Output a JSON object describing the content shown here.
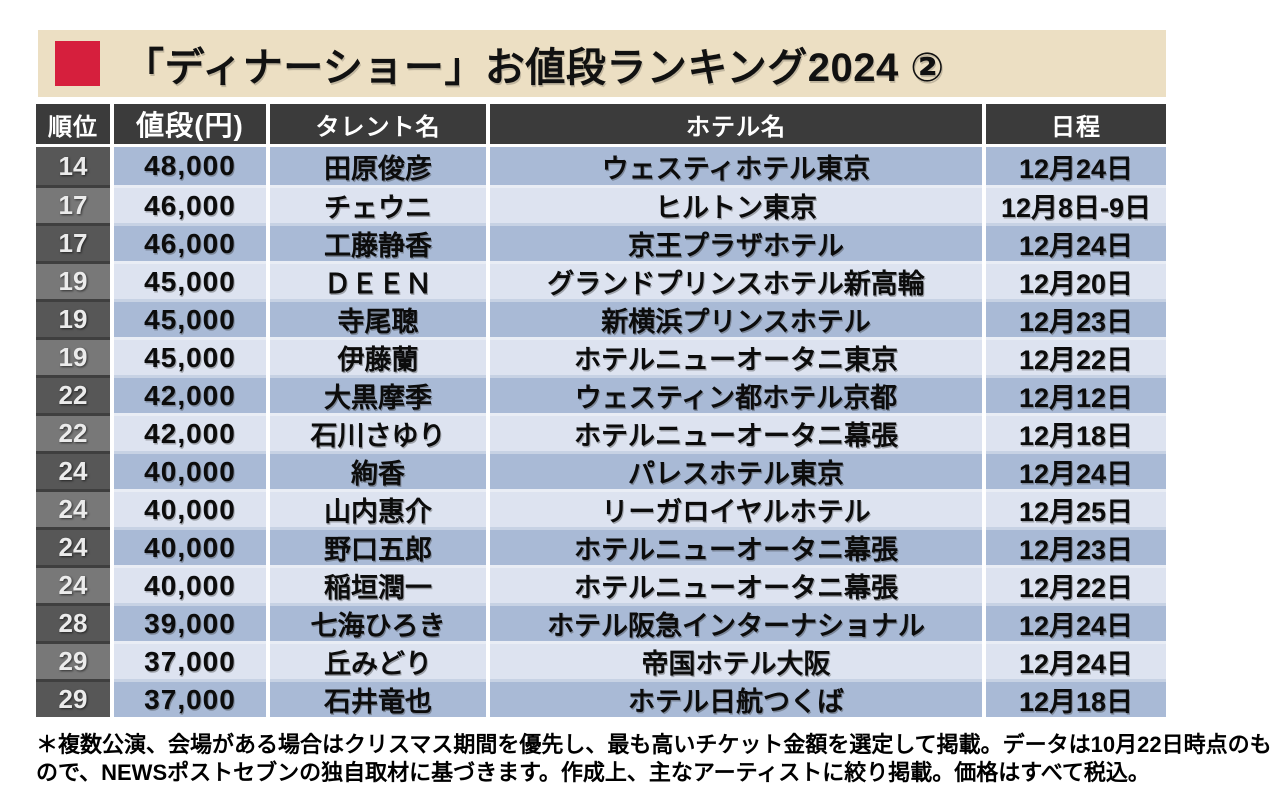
{
  "title": {
    "text": "「ディナーショー」お値段ランキング2024 ②"
  },
  "chart_data": {
    "type": "table",
    "title": "「ディナーショー」お値段ランキング2024 ②",
    "columns": [
      "順位",
      "値段(円)",
      "タレント名",
      "ホテル名",
      "日程"
    ],
    "rows": [
      [
        "14",
        "48,000",
        "田原俊彦",
        "ウェスティホテル東京",
        "12月24日"
      ],
      [
        "17",
        "46,000",
        "チェウニ",
        "ヒルトン東京",
        "12月8日-9日"
      ],
      [
        "17",
        "46,000",
        "工藤静香",
        "京王プラザホテル",
        "12月24日"
      ],
      [
        "19",
        "45,000",
        "ＤＥＥＮ",
        "グランドプリンスホテル新高輪",
        "12月20日"
      ],
      [
        "19",
        "45,000",
        "寺尾聰",
        "新横浜プリンスホテル",
        "12月23日"
      ],
      [
        "19",
        "45,000",
        "伊藤蘭",
        "ホテルニューオータニ東京",
        "12月22日"
      ],
      [
        "22",
        "42,000",
        "大黒摩季",
        "ウェスティン都ホテル京都",
        "12月12日"
      ],
      [
        "22",
        "42,000",
        "石川さゆり",
        "ホテルニューオータニ幕張",
        "12月18日"
      ],
      [
        "24",
        "40,000",
        "絢香",
        "パレスホテル東京",
        "12月24日"
      ],
      [
        "24",
        "40,000",
        "山内惠介",
        "リーガロイヤルホテル",
        "12月25日"
      ],
      [
        "24",
        "40,000",
        "野口五郎",
        "ホテルニューオータニ幕張",
        "12月23日"
      ],
      [
        "24",
        "40,000",
        "稲垣潤一",
        "ホテルニューオータニ幕張",
        "12月22日"
      ],
      [
        "28",
        "39,000",
        "七海ひろき",
        "ホテル阪急インターナショナル",
        "12月24日"
      ],
      [
        "29",
        "37,000",
        "丘みどり",
        "帝国ホテル大阪",
        "12月24日"
      ],
      [
        "29",
        "37,000",
        "石井竜也",
        "ホテル日航つくば",
        "12月18日"
      ]
    ]
  },
  "footer": {
    "lines": [
      "＊複数公演、会場がある場合はクリスマス期間を優先し、最も高いチケット金額を選定して掲載。データは10月22日時点のも",
      "ので、NEWSポストセブンの独自取材に基づきます。作成上、主なアーティストに絞り掲載。価格はすべて税込。"
    ]
  },
  "colors": {
    "band": "#ecdfc3",
    "accent": "#d61f3d",
    "header_bg": "#3b3b3b",
    "rank_dark": "#575757",
    "rank_light": "#787878",
    "rank_separator": "#3f3f3f",
    "row_medium": "#a9bad6",
    "row_light": "#dde3f0",
    "text_dark": "#0c0c0c",
    "rank_text": "#ebebeb"
  }
}
